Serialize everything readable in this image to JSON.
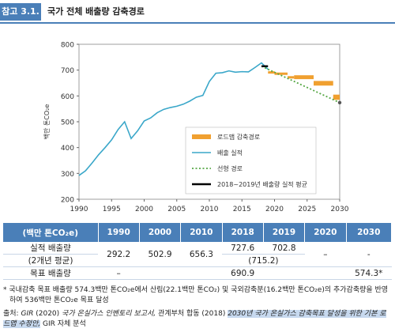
{
  "header": {
    "tag": "참고 3.1.",
    "title": "국가 전체 배출량 감축경로"
  },
  "chart_data": {
    "type": "line",
    "ylabel": "백만 톤CO₂e",
    "xlim": [
      1990,
      2030
    ],
    "ylim": [
      200,
      800
    ],
    "x_ticks": [
      "1990",
      "1995",
      "2000",
      "2005",
      "2010",
      "2015",
      "2020",
      "2025",
      "2030"
    ],
    "y_ticks": [
      "200",
      "300",
      "400",
      "500",
      "600",
      "700",
      "800"
    ],
    "legend": {
      "position": "bottom-right",
      "items": [
        "로드맵 감축경로",
        "배출 실적",
        "선형 경로",
        "2018~2019년 배출량 실적 평균"
      ]
    },
    "series": [
      {
        "name": "배출 실적",
        "color": "#3aa7c9",
        "x": [
          1990,
          1991,
          1992,
          1993,
          1994,
          1995,
          1996,
          1997,
          1998,
          1999,
          2000,
          2001,
          2002,
          2003,
          2004,
          2005,
          2006,
          2007,
          2008,
          2009,
          2010,
          2011,
          2012,
          2013,
          2014,
          2015,
          2016,
          2017,
          2018,
          2019
        ],
        "y": [
          292,
          310,
          340,
          372,
          400,
          430,
          470,
          500,
          435,
          465,
          503,
          515,
          535,
          548,
          555,
          560,
          568,
          580,
          595,
          602,
          656,
          688,
          690,
          697,
          692,
          694,
          693,
          710,
          728,
          703
        ]
      },
      {
        "name": "선형 경로",
        "color": "#56a845",
        "x": [
          2018,
          2030
        ],
        "y": [
          715,
          574
        ]
      },
      {
        "name": "2018~2019년 배출량 실적 평균",
        "color": "#000000",
        "x": [
          2018,
          2019
        ],
        "y": [
          715,
          715
        ]
      },
      {
        "name": "로드맵 감축경로",
        "color": "#f0a030",
        "steps": [
          {
            "x0": 2019,
            "x1": 2020,
            "y0": 691,
            "y1": 691
          },
          {
            "x0": 2020,
            "x1": 2022,
            "y0": 686,
            "y1": 686
          },
          {
            "x0": 2022,
            "x1": 2023,
            "y0": 672,
            "y1": 672
          },
          {
            "x0": 2023,
            "x1": 2026,
            "y0": 665,
            "y1": 680
          },
          {
            "x0": 2026,
            "x1": 2029,
            "y0": 640,
            "y1": 658
          },
          {
            "x0": 2029,
            "x1": 2030,
            "y0": 585,
            "y1": 605
          }
        ]
      }
    ]
  },
  "table": {
    "headers": [
      "(백만 톤CO₂e)",
      "1990",
      "2000",
      "2010",
      "2018",
      "2019",
      "2020",
      "2030"
    ],
    "row1_label": "실적 배출량",
    "row1_sub": "(2개년 평균)",
    "v1990": "292.2",
    "v2000": "502.9",
    "v2010": "656.3",
    "v2018": "727.6",
    "v2019": "702.8",
    "avg": "(715.2)",
    "v2020": "–",
    "v2030": "-",
    "row2_label": "목표 배출량",
    "r2_1990": "–",
    "r2_mid": "690.9",
    "r2_2030": "574.3*"
  },
  "notes": {
    "note1": "* 국내감축 목표 배출량 574.3백만 톤CO₂e에서 산림(22.1백만 톤CO₂) 및 국외감축분(16.2백만 톤CO₂e)의 추가감축량을 반영하여 536백만 톤CO₂e 목표 달성",
    "src_label": "출처:",
    "src_it1": "GIR",
    "src_mid": "(2020)",
    "src_it2": "국가 온실가스 인벤토리 보고서,",
    "src_mid2": "관계부처 합동 (2018)",
    "src_hl": "2030년 국가 온실가스 감축목표 달성을 위한 기본 로드맵 수정안,",
    "src_end": "GIR 자체 분석"
  }
}
